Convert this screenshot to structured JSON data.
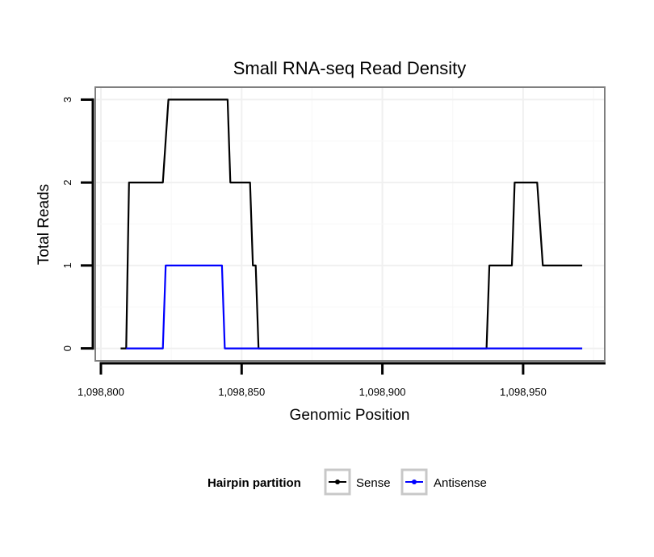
{
  "chart_data": {
    "type": "line",
    "title": "Small RNA-seq Read Density",
    "xlabel": "Genomic Position",
    "ylabel": "Total Reads",
    "xlim": [
      1098798,
      1098979
    ],
    "ylim": [
      -0.15,
      3.15
    ],
    "x_ticks": [
      1098800,
      1098850,
      1098900,
      1098950
    ],
    "x_tick_labels": [
      "1,098,800",
      "1,098,850",
      "1,098,900",
      "1,098,950"
    ],
    "y_ticks": [
      0,
      1,
      2,
      3
    ],
    "y_tick_labels": [
      "0",
      "1",
      "2",
      "3"
    ],
    "grid": true,
    "legend": {
      "title": "Hairpin partition",
      "position": "bottom",
      "entries": [
        "Sense",
        "Antisense"
      ]
    },
    "series": [
      {
        "name": "Sense",
        "color": "#000000",
        "x": [
          1098807,
          1098809,
          1098810,
          1098822,
          1098824,
          1098845,
          1098846,
          1098853,
          1098854,
          1098855,
          1098856,
          1098858,
          1098937,
          1098938,
          1098946,
          1098947,
          1098955,
          1098957,
          1098971
        ],
        "y": [
          0,
          0,
          2,
          2,
          3,
          3,
          2,
          2,
          1,
          1,
          0,
          0,
          0,
          1,
          1,
          2,
          2,
          1,
          1
        ]
      },
      {
        "name": "Antisense",
        "color": "#0000ff",
        "x": [
          1098809,
          1098822,
          1098823,
          1098843,
          1098844,
          1098855,
          1098937,
          1098971
        ],
        "y": [
          0,
          0,
          1,
          1,
          0,
          0,
          0,
          0
        ]
      }
    ]
  }
}
